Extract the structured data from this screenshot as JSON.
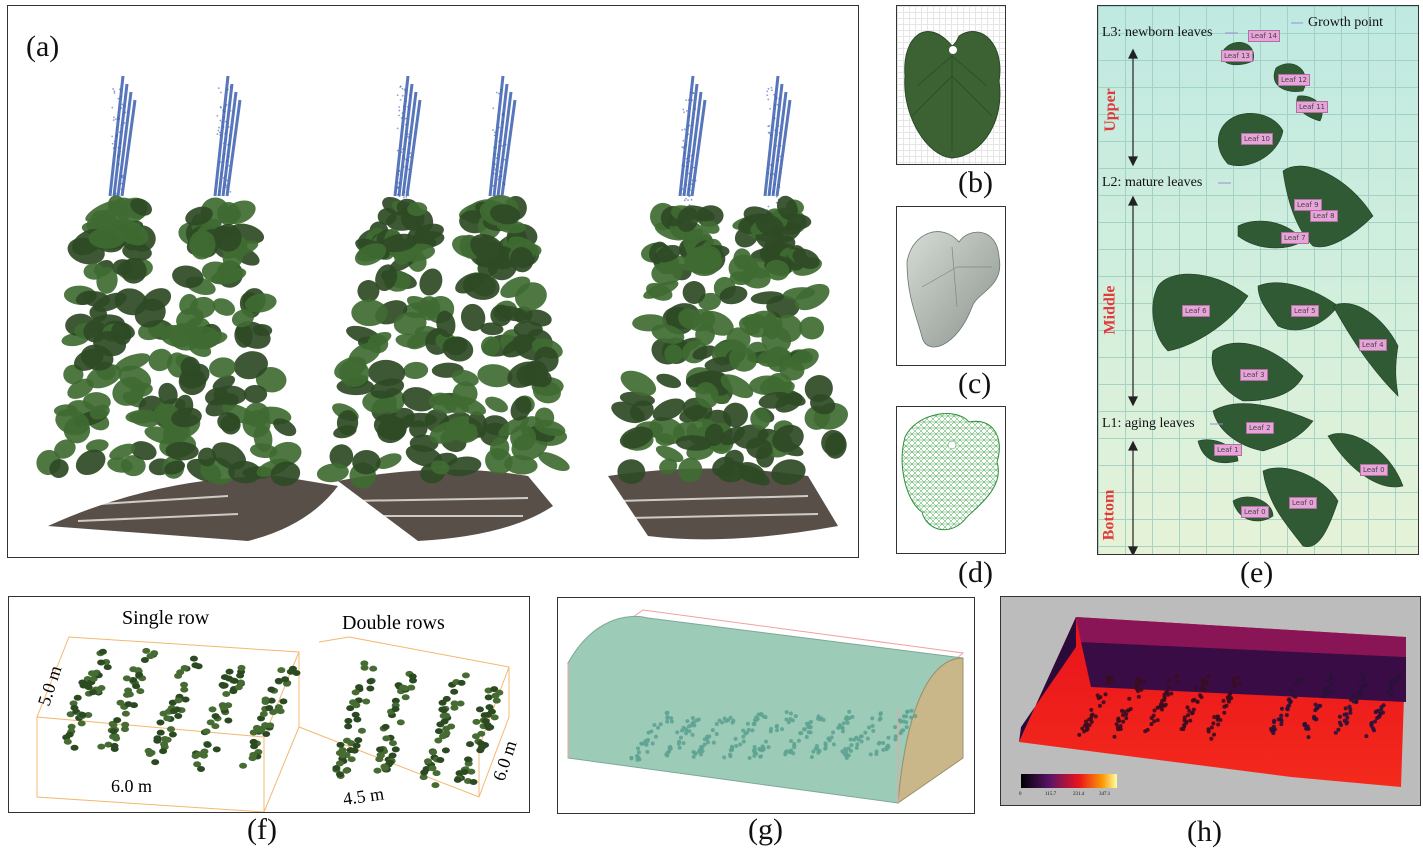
{
  "panels": {
    "a": "(a)",
    "b": "(b)",
    "c": "(c)",
    "d": "(d)",
    "e": "(e)",
    "f": "(f)",
    "g": "(g)",
    "h": "(h)"
  },
  "panel_e": {
    "growth_point": "Growth point",
    "l3": "L3: newborn leaves",
    "l2": "L2: mature leaves",
    "l1": "L1: aging leaves",
    "upper": "Upper",
    "middle": "Middle",
    "bottom": "Bottom"
  },
  "panel_f": {
    "single_row": "Single row",
    "double_rows": "Double rows",
    "dim_height": "5.0 m",
    "dim_width_single": "6.0 m",
    "dim_width_double": "4.5 m",
    "dim_depth": "6.0 m"
  },
  "panel_h": {
    "colorbar_ticks": [
      "0",
      "115.7",
      "231.4",
      "347.1"
    ]
  },
  "colors": {
    "leaf_dark": "#2e4a25",
    "leaf_mid": "#3f6b32",
    "stake_blue": "#3a5fb0",
    "panel_e_bg": "#cfeee0",
    "greenhouse": "#9fcab6",
    "heat_red": "#e8121c",
    "heat_purple": "#3a0c45"
  }
}
